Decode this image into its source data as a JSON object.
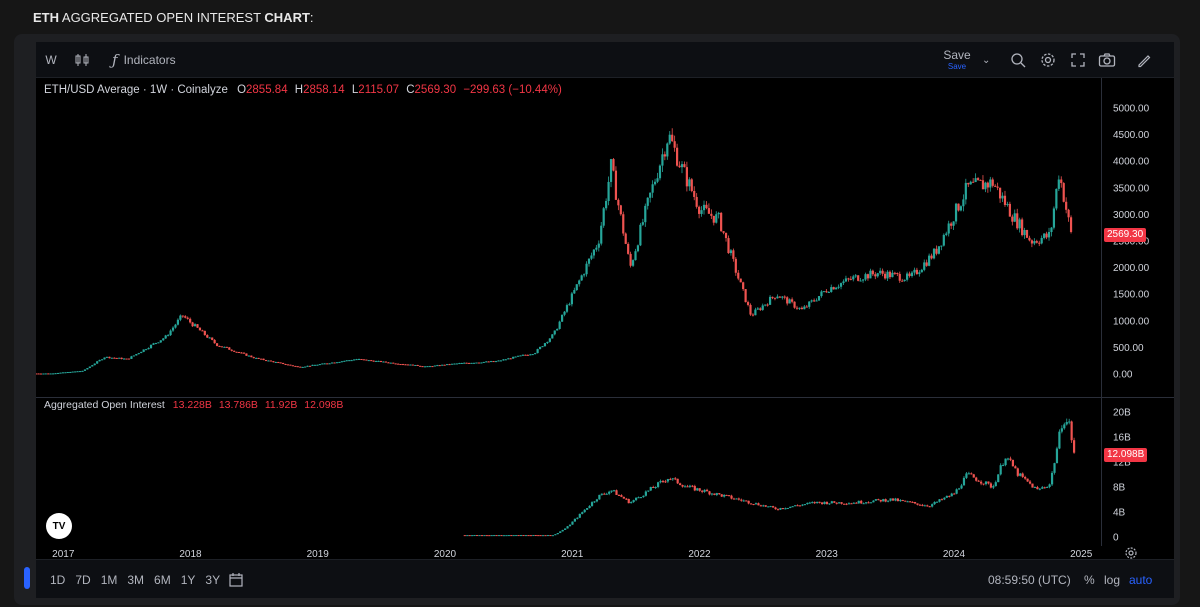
{
  "heading": {
    "bold1": "ETH",
    "mid": " AGGREGATED OPEN INTEREST ",
    "bold2": "CHART",
    "tail": ":"
  },
  "toolbar": {
    "interval": "W",
    "indicators_label": "Indicators",
    "save_label": "Save",
    "save_sub": "Save"
  },
  "legend_price": {
    "symbol": "ETH/USD Average · 1W · Coinalyze",
    "o_label": "O",
    "o": "2855.84",
    "h_label": "H",
    "h": "2858.14",
    "l_label": "L",
    "l": "2115.07",
    "c_label": "C",
    "c": "2569.30",
    "change": "−299.63 (−10.44%)"
  },
  "legend_oi": {
    "name": "Aggregated Open Interest",
    "v1": "13.228B",
    "v2": "13.786B",
    "v3": "11.92B",
    "v4": "12.098B"
  },
  "price_tag": "2569.30",
  "oi_tag": "12.098B",
  "bottombar": {
    "ranges": [
      "1D",
      "7D",
      "1M",
      "3M",
      "6M",
      "1Y",
      "3Y"
    ],
    "time": "08:59:50 (UTC)",
    "pct": "%",
    "log": "log",
    "auto": "auto"
  },
  "colors": {
    "up": "#26a69a",
    "down": "#ef5350",
    "tag": "#f23645",
    "accent": "#2962ff"
  },
  "chart_data": [
    {
      "type": "candlestick",
      "title": "ETH/USD Average · 1W · Coinalyze",
      "x_ticks": [
        "2017",
        "2018",
        "2019",
        "2020",
        "2021",
        "2022",
        "2023",
        "2024",
        "2025"
      ],
      "y_ticks": [
        "0.00",
        "500.00",
        "1000.00",
        "1500.00",
        "2000.00",
        "2500.00",
        "3000.00",
        "3500.00",
        "4000.00",
        "4500.00",
        "5000.00"
      ],
      "ylim": [
        0,
        5000
      ],
      "x": [
        2017.0,
        2017.25,
        2017.42,
        2017.6,
        2017.9,
        2018.03,
        2018.3,
        2018.6,
        2018.95,
        2019.4,
        2019.75,
        2019.95,
        2020.2,
        2020.5,
        2020.8,
        2020.95,
        2021.1,
        2021.3,
        2021.4,
        2021.55,
        2021.7,
        2021.85,
        2021.95,
        2022.1,
        2022.25,
        2022.4,
        2022.5,
        2022.7,
        2022.9,
        2023.1,
        2023.3,
        2023.5,
        2023.75,
        2023.95,
        2024.2,
        2024.4,
        2024.55,
        2024.7,
        2024.85,
        2024.92,
        2025.02
      ],
      "close": [
        10,
        60,
        320,
        280,
        700,
        1100,
        550,
        300,
        130,
        280,
        190,
        140,
        200,
        240,
        400,
        750,
        1500,
        2500,
        3900,
        2000,
        3300,
        4500,
        3900,
        3100,
        2900,
        1800,
        1100,
        1500,
        1200,
        1600,
        1800,
        1900,
        1800,
        2300,
        3500,
        3600,
        3000,
        2500,
        2600,
        3800,
        2569.3
      ],
      "last": {
        "open": 2855.84,
        "high": 2858.14,
        "low": 2115.07,
        "close": 2569.3
      }
    },
    {
      "type": "candlestick",
      "title": "Aggregated Open Interest",
      "y_ticks": [
        "0",
        "4B",
        "8B",
        "12B",
        "16B",
        "20B"
      ],
      "ylim": [
        0,
        20
      ],
      "unit": "B",
      "x": [
        2020.25,
        2020.95,
        2021.05,
        2021.3,
        2021.4,
        2021.55,
        2021.85,
        2022.0,
        2022.3,
        2022.5,
        2022.7,
        2023.0,
        2023.3,
        2023.6,
        2023.9,
        2024.1,
        2024.2,
        2024.4,
        2024.5,
        2024.6,
        2024.75,
        2024.85,
        2024.95,
        2025.0,
        2025.05
      ],
      "close": [
        0.3,
        0.3,
        1.5,
        6.5,
        7.5,
        5.5,
        9.5,
        8.0,
        6.5,
        5.5,
        4.5,
        5.5,
        5.5,
        6.0,
        5.0,
        7.0,
        10.0,
        8.0,
        13.0,
        10.0,
        7.5,
        8.5,
        19.0,
        18.0,
        12.098
      ],
      "last": {
        "open": 13.228,
        "high": 13.786,
        "low": 11.92,
        "close": 12.098
      }
    }
  ]
}
